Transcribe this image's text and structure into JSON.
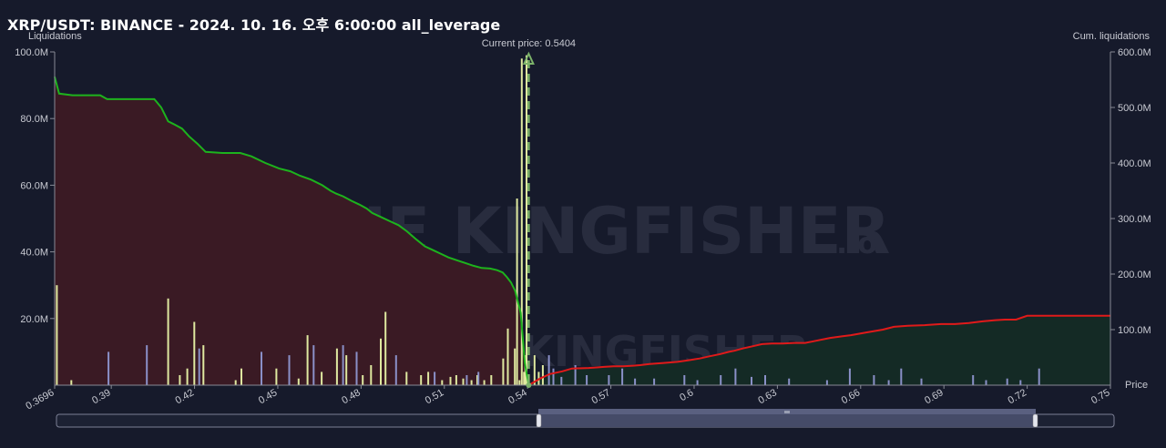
{
  "title": "XRP/USDT: BINANCE - 2024. 10. 16. 오후 6:00:00 all_leverage",
  "watermark": {
    "brand": "THE KINGFISHER",
    "suffix": ".io"
  },
  "colors": {
    "background": "#161a2b",
    "long_fill": "#3a1a24",
    "short_fill": "#142a25",
    "cum_left_line": "#1db31d",
    "cum_right_line": "#e01a1a",
    "bar_yellow": "#dfe9a0",
    "bar_blue": "#8a90c8",
    "price_line": "#7cb36a"
  },
  "chart_data": {
    "type": "bar",
    "title": "XRP/USDT: BINANCE - 2024. 10. 16. 오후 6:00:00 all_leverage",
    "xlabel": "Price",
    "ylabel": "Liquidations",
    "y2label": "Cum. liquidations",
    "current_price_label": "Current price: 0.5404",
    "current_price": 0.5404,
    "xlim": [
      0.3696,
      0.75
    ],
    "ylim": [
      0,
      100
    ],
    "y2lim": [
      0,
      600
    ],
    "x_ticks": [
      "0.3696",
      "0.39",
      "0.42",
      "0.45",
      "0.48",
      "0.51",
      "0.54",
      "0.57",
      "0.6",
      "0.63",
      "0.66",
      "0.69",
      "0.72",
      "0.75"
    ],
    "y_ticks": [
      "20.0M",
      "40.0M",
      "60.0M",
      "80.0M",
      "100.0M"
    ],
    "y2_ticks": [
      "100.0M",
      "200.0M",
      "300.0M",
      "400.0M",
      "500.0M",
      "600.0M"
    ],
    "units": "M",
    "cumulative_left": {
      "x": [
        0.3696,
        0.3712,
        0.376,
        0.381,
        0.386,
        0.3885,
        0.392,
        0.398,
        0.4055,
        0.408,
        0.4105,
        0.4125,
        0.4155,
        0.418,
        0.421,
        0.424,
        0.43,
        0.433,
        0.4365,
        0.4405,
        0.4455,
        0.4505,
        0.4545,
        0.458,
        0.462,
        0.466,
        0.469,
        0.471,
        0.4735,
        0.4765,
        0.4795,
        0.482,
        0.484,
        0.4875,
        0.4905,
        0.4935,
        0.4965,
        0.5,
        0.503,
        0.506,
        0.5085,
        0.5115,
        0.5145,
        0.5175,
        0.5205,
        0.5235,
        0.5265,
        0.529,
        0.531,
        0.5325,
        0.534,
        0.5355,
        0.5375,
        0.539,
        0.5404
      ],
      "y": [
        555,
        525,
        522,
        522,
        522,
        515,
        515,
        515,
        515,
        500,
        475,
        470,
        462,
        448,
        435,
        420,
        418,
        418,
        418,
        412,
        400,
        390,
        385,
        377,
        370,
        360,
        350,
        345,
        340,
        332,
        325,
        318,
        310,
        302,
        295,
        288,
        277,
        262,
        250,
        243,
        237,
        230,
        225,
        220,
        215,
        211,
        210,
        207,
        203,
        195,
        185,
        170,
        130,
        40,
        0
      ]
    },
    "cumulative_right": {
      "x": [
        0.5404,
        0.5445,
        0.548,
        0.5525,
        0.556,
        0.562,
        0.565,
        0.5675,
        0.571,
        0.5745,
        0.578,
        0.5805,
        0.584,
        0.589,
        0.594,
        0.598,
        0.602,
        0.6055,
        0.6095,
        0.6125,
        0.6145,
        0.6175,
        0.621,
        0.6245,
        0.628,
        0.632,
        0.636,
        0.64,
        0.644,
        0.649,
        0.6535,
        0.6565,
        0.662,
        0.668,
        0.672,
        0.677,
        0.683,
        0.689,
        0.694,
        0.699,
        0.704,
        0.7085,
        0.712,
        0.716,
        0.72,
        0.7285,
        0.75
      ],
      "y": [
        0,
        12,
        20,
        25,
        30,
        31,
        32,
        33,
        34,
        34,
        35,
        36,
        38,
        40,
        42,
        45,
        48,
        52,
        56,
        60,
        62,
        66,
        70,
        74,
        75,
        75,
        76,
        76,
        80,
        85,
        88,
        90,
        95,
        100,
        105,
        107,
        108,
        110,
        110,
        112,
        115,
        117,
        118,
        118,
        125,
        125,
        125
      ]
    },
    "series": [
      {
        "name": "",
        "color": "#dfe9a0",
        "x": [
          0.3704,
          0.3756,
          0.4105,
          0.4147,
          0.4174,
          0.4199,
          0.4232,
          0.4348,
          0.4369,
          0.4495,
          0.4575,
          0.4607,
          0.4658,
          0.4713,
          0.4747,
          0.4806,
          0.4836,
          0.4871,
          0.4888,
          0.4964,
          0.5016,
          0.5042,
          0.5092,
          0.5122,
          0.5143,
          0.5168,
          0.5198,
          0.5219,
          0.5244,
          0.5269,
          0.5312,
          0.5329,
          0.5354,
          0.5362,
          0.5371,
          0.5379,
          0.5387,
          0.5392,
          0.5396,
          0.5425,
          0.544,
          0.5455
        ],
        "values": [
          30,
          1.5,
          26,
          3,
          5,
          19,
          12,
          1.5,
          5,
          5,
          2,
          15,
          4,
          11,
          9,
          3,
          6,
          14,
          22,
          4,
          3,
          4,
          1.5,
          2.5,
          3,
          2,
          1.5,
          3,
          1.5,
          3,
          8,
          17,
          11,
          56,
          1.5,
          98,
          4,
          9,
          99,
          9,
          4,
          6
        ]
      },
      {
        "name": "",
        "color": "#8a90c8",
        "x": [
          0.389,
          0.4028,
          0.4217,
          0.4441,
          0.4541,
          0.4629,
          0.4735,
          0.4784,
          0.4926,
          0.5065,
          0.5181,
          0.5223,
          0.5477,
          0.5493,
          0.5522,
          0.5572,
          0.5613,
          0.5693,
          0.5741,
          0.5787,
          0.5856,
          0.5965,
          0.6012,
          0.6096,
          0.6149,
          0.6207,
          0.6256,
          0.6342,
          0.6479,
          0.6561,
          0.6648,
          0.6701,
          0.6746,
          0.6819,
          0.7005,
          0.7052,
          0.7128,
          0.7176,
          0.7243
        ],
        "values": [
          10,
          12,
          11,
          10,
          9,
          12,
          12,
          10,
          9,
          4,
          3,
          4,
          9,
          5,
          2.5,
          6,
          3,
          3,
          5,
          2,
          2,
          3,
          1.5,
          3,
          5,
          2.5,
          3,
          2,
          1.5,
          5,
          3,
          1.5,
          5,
          2,
          3,
          1.5,
          2,
          1.5,
          5
        ]
      }
    ]
  }
}
